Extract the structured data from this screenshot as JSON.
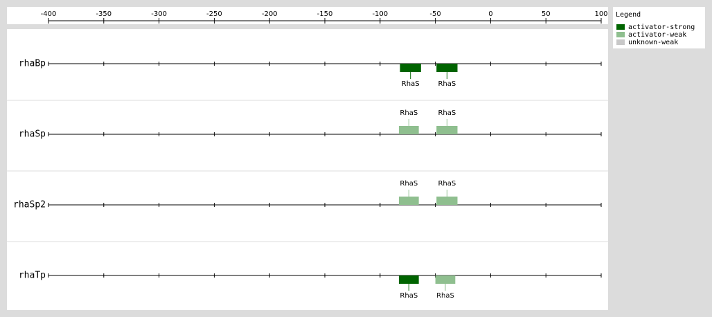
{
  "axis": {
    "xlim": [
      -400,
      100
    ],
    "xticks": [
      -400,
      -350,
      -300,
      -250,
      -200,
      -150,
      -100,
      -50,
      0,
      50,
      100
    ]
  },
  "legend": {
    "title": "Legend",
    "items": [
      {
        "label": "activator-strong",
        "color": "#006400"
      },
      {
        "label": "activator-weak",
        "color": "#8fbf8f"
      },
      {
        "label": "unknown-weak",
        "color": "#c8c8c8"
      }
    ]
  },
  "tracks": [
    {
      "name": "rhaBp",
      "label_side": "below",
      "sites": [
        {
          "label": "RhaS",
          "type": "activator-strong",
          "start": -82,
          "end": -63
        },
        {
          "label": "RhaS",
          "type": "activator-strong",
          "start": -49,
          "end": -30
        }
      ]
    },
    {
      "name": "rhaSp",
      "label_side": "above",
      "sites": [
        {
          "label": "RhaS",
          "type": "activator-weak",
          "start": -83,
          "end": -65
        },
        {
          "label": "RhaS",
          "type": "activator-weak",
          "start": -49,
          "end": -30
        }
      ]
    },
    {
      "name": "rhaSp2",
      "label_side": "above",
      "sites": [
        {
          "label": "RhaS",
          "type": "activator-weak",
          "start": -83,
          "end": -65
        },
        {
          "label": "RhaS",
          "type": "activator-weak",
          "start": -49,
          "end": -30
        }
      ]
    },
    {
      "name": "rhaTp",
      "label_side": "below",
      "sites": [
        {
          "label": "RhaS",
          "type": "activator-strong",
          "start": -83,
          "end": -65
        },
        {
          "label": "RhaS",
          "type": "activator-weak",
          "start": -50,
          "end": -32
        }
      ]
    }
  ]
}
